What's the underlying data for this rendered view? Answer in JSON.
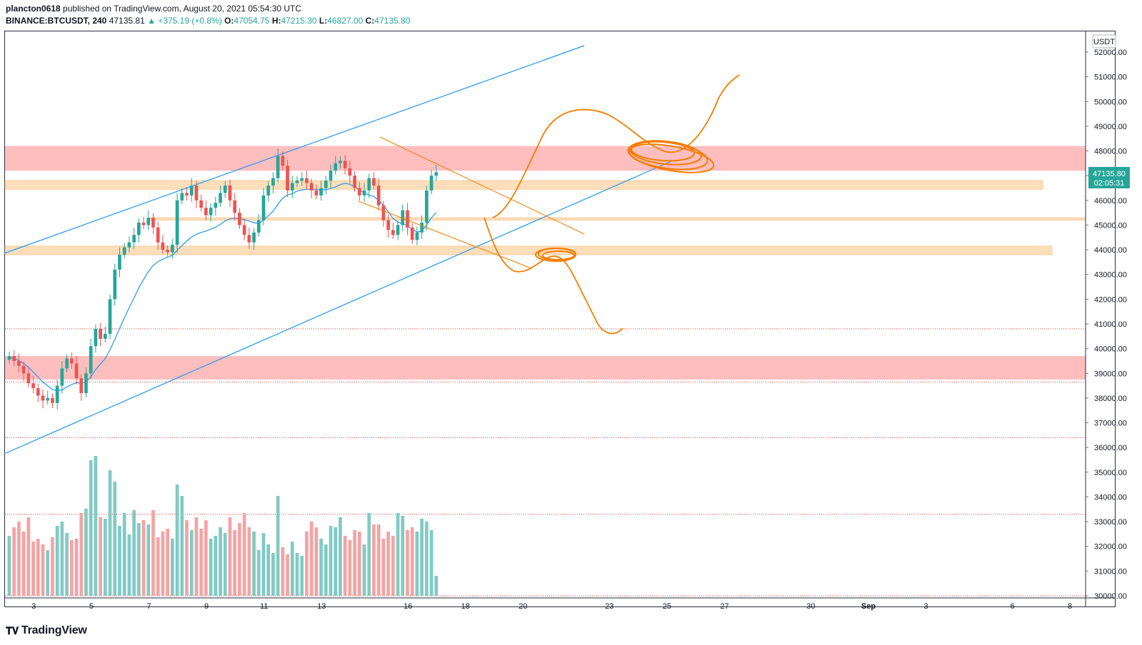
{
  "header": {
    "line1_user": "plancton0618",
    "line1_text": "published on TradingView.com, August 20, 2021 05:54:30 UTC",
    "symbol": "BINANCE:BTCUSDT, 240",
    "last": "47135.81",
    "change": "▲ +375.19 (+0.8%)",
    "o_label": "O:",
    "o": "47054.75",
    "h_label": "H:",
    "h": "47215.30",
    "l_label": "L:",
    "l": "46827.00",
    "c_label": "C:",
    "c": "47135.80"
  },
  "brand": {
    "logo_icon": "tv-logo-icon",
    "name": "TradingView"
  },
  "colors": {
    "up": "#26a69a",
    "down": "#ef5350",
    "ma": "#2196f3",
    "channel": "#2196f3",
    "drawing": "#f57c00",
    "resistance_zone": "#ffb3b3",
    "support_zone": "#fcd9b0"
  },
  "chart_data": {
    "type": "candlestick",
    "title": "",
    "currency": "USDT",
    "timeframe": "240",
    "price_scale": {
      "min": 30000,
      "max": 52000,
      "ticks": [
        "52000.00",
        "51000.00",
        "50000.00",
        "49000.00",
        "48000.00",
        "47000.00",
        "46000.00",
        "45000.00",
        "44000.00",
        "43000.00",
        "42000.00",
        "41000.00",
        "40000.00",
        "39000.00",
        "38000.00",
        "37000.00",
        "36000.00",
        "35000.00",
        "34000.00",
        "33000.00",
        "32000.00",
        "31000.00",
        "30000.00"
      ]
    },
    "time_axis": {
      "ticks": [
        {
          "label": "3",
          "day": 3
        },
        {
          "label": "5",
          "day": 5
        },
        {
          "label": "7",
          "day": 7
        },
        {
          "label": "9",
          "day": 9
        },
        {
          "label": "11",
          "day": 11
        },
        {
          "label": "13",
          "day": 13
        },
        {
          "label": "16",
          "day": 16
        },
        {
          "label": "18",
          "day": 18
        },
        {
          "label": "20",
          "day": 20
        },
        {
          "label": "23",
          "day": 23
        },
        {
          "label": "25",
          "day": 25
        },
        {
          "label": "27",
          "day": 27
        },
        {
          "label": "30",
          "day": 30
        },
        {
          "label": "Sep",
          "day": 32
        },
        {
          "label": "3",
          "day": 34
        },
        {
          "label": "6",
          "day": 37
        },
        {
          "label": "8",
          "day": 39
        }
      ]
    },
    "last_price": "47135.80",
    "countdown": "02:05:31",
    "closes": [
      39700,
      39500,
      39300,
      39000,
      38600,
      38400,
      38100,
      37900,
      38000,
      37800,
      38500,
      39200,
      39600,
      39400,
      38800,
      38200,
      39000,
      40100,
      40800,
      40400,
      40600,
      42000,
      43200,
      43800,
      44100,
      44300,
      44600,
      45100,
      45000,
      45300,
      44900,
      44300,
      44000,
      43900,
      44200,
      46000,
      46300,
      46200,
      46600,
      46000,
      45700,
      45400,
      45700,
      45900,
      46300,
      46600,
      46000,
      45500,
      45000,
      44600,
      44300,
      44700,
      45200,
      46200,
      46600,
      46900,
      47800,
      47400,
      46400,
      46700,
      46800,
      46900,
      46700,
      46400,
      46200,
      46500,
      46800,
      47200,
      47500,
      47600,
      47300,
      47000,
      46500,
      46200,
      46400,
      46900,
      46600,
      45800,
      45200,
      44800,
      44600,
      45000,
      45600,
      44900,
      44400,
      44700,
      45100,
      46400,
      47000,
      47136
    ],
    "volumes": [
      0.42,
      0.48,
      0.52,
      0.45,
      0.55,
      0.38,
      0.4,
      0.36,
      0.32,
      0.41,
      0.49,
      0.52,
      0.44,
      0.39,
      0.4,
      0.58,
      0.61,
      0.95,
      0.98,
      0.55,
      0.54,
      0.88,
      0.8,
      0.49,
      0.58,
      0.43,
      0.6,
      0.51,
      0.53,
      0.5,
      0.6,
      0.41,
      0.45,
      0.47,
      0.4,
      0.78,
      0.7,
      0.53,
      0.46,
      0.55,
      0.47,
      0.53,
      0.4,
      0.42,
      0.48,
      0.44,
      0.55,
      0.46,
      0.51,
      0.58,
      0.48,
      0.45,
      0.32,
      0.44,
      0.36,
      0.3,
      0.7,
      0.34,
      0.29,
      0.38,
      0.3,
      0.28,
      0.45,
      0.52,
      0.48,
      0.4,
      0.36,
      0.49,
      0.48,
      0.55,
      0.42,
      0.39,
      0.46,
      0.45,
      0.36,
      0.58,
      0.5,
      0.5,
      0.4,
      0.45,
      0.42,
      0.58,
      0.56,
      0.46,
      0.48,
      0.45,
      0.54,
      0.52,
      0.46,
      0.14
    ],
    "ma": [
      39650,
      39600,
      39520,
      39400,
      39250,
      39050,
      38850,
      38650,
      38500,
      38350,
      38300,
      38330,
      38450,
      38550,
      38620,
      38600,
      38650,
      38850,
      39150,
      39380,
      39600,
      39950,
      40380,
      40820,
      41250,
      41660,
      42050,
      42460,
      42800,
      43120,
      43370,
      43520,
      43620,
      43700,
      43780,
      43980,
      44170,
      44350,
      44520,
      44630,
      44700,
      44760,
      44830,
      44910,
      45030,
      45170,
      45250,
      45280,
      45260,
      45230,
      45160,
      45100,
      45060,
      45200,
      45380,
      45560,
      45840,
      46090,
      46220,
      46270,
      46380,
      46420,
      46450,
      46450,
      46440,
      46420,
      46430,
      46480,
      46540,
      46640,
      46690,
      46650,
      46550,
      46440,
      46300,
      46220,
      46150,
      46000,
      45800,
      45540,
      45270,
      45120,
      45050,
      44980,
      44830,
      44720,
      44760,
      45000,
      45300,
      45500
    ],
    "zones": [
      {
        "kind": "resistance",
        "from": 47200,
        "to": 48200
      },
      {
        "kind": "resistance",
        "from": 38750,
        "to": 39700
      },
      {
        "kind": "support",
        "from": 46450,
        "to": 46800
      },
      {
        "kind": "support",
        "from": 45200,
        "to": 45300
      },
      {
        "kind": "support",
        "from": 43800,
        "to": 44150
      }
    ],
    "dotted_levels": [
      40800,
      38650,
      36400,
      33300,
      30000
    ]
  }
}
